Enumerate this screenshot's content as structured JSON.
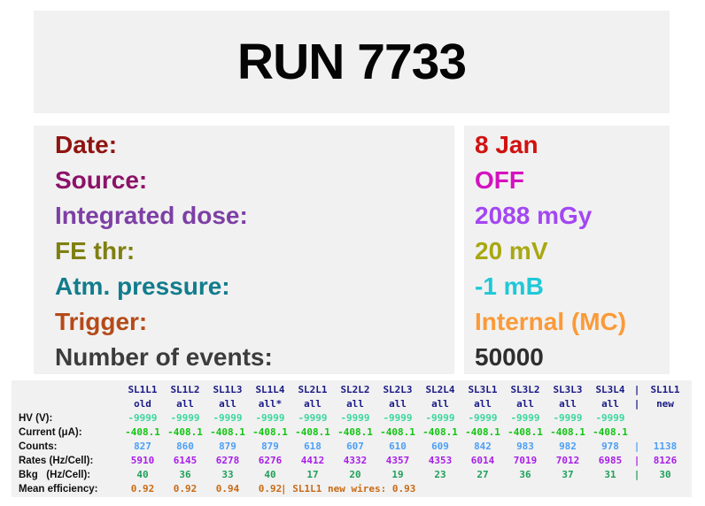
{
  "title": "RUN 7733",
  "info": {
    "rows": [
      {
        "key": "date",
        "label": "Date:",
        "value": "8 Jan",
        "label_color": "#8f1410",
        "value_color": "#d01211"
      },
      {
        "key": "source",
        "label": "Source:",
        "value": "OFF",
        "label_color": "#8c1268",
        "value_color": "#d412c0"
      },
      {
        "key": "integrated-dose",
        "label": "Integrated dose:",
        "value": "2088 mGy",
        "label_color": "#7d3fa5",
        "value_color": "#a347f2"
      },
      {
        "key": "fe-thr",
        "label": "FE thr:",
        "value": "20 mV",
        "label_color": "#7f7f12",
        "value_color": "#a8a812"
      },
      {
        "key": "atm-pressure",
        "label": "Atm. pressure:",
        "value": "-1 mB",
        "label_color": "#127c8c",
        "value_color": "#1fc8d8"
      },
      {
        "key": "trigger",
        "label": "Trigger:",
        "value": "Internal (MC)",
        "label_color": "#b54a18",
        "value_color": "#fb9a38"
      },
      {
        "key": "number-of-events",
        "label": "Number of events:",
        "value": "50000",
        "label_color": "#3c3c3c",
        "value_color": "#2e2e2e"
      }
    ]
  },
  "table": {
    "pipe": "|",
    "header_color": "#1a1a87",
    "columns": [
      "SL1L1",
      "SL1L2",
      "SL1L3",
      "SL1L4",
      "SL2L1",
      "SL2L2",
      "SL2L3",
      "SL2L4",
      "SL3L1",
      "SL3L2",
      "SL3L3",
      "SL3L4"
    ],
    "extra_header": "SL1L1",
    "subcolumns": [
      "old",
      "all",
      "all",
      "all*",
      "all",
      "all",
      "all",
      "all",
      "all",
      "all",
      "all",
      "all"
    ],
    "extra_subheader": "new",
    "rows": [
      {
        "label": "HV (V):",
        "color": "#3bd79e",
        "values": [
          "-9999",
          "-9999",
          "-9999",
          "-9999",
          "-9999",
          "-9999",
          "-9999",
          "-9999",
          "-9999",
          "-9999",
          "-9999",
          "-9999"
        ],
        "extra": ""
      },
      {
        "label": "Current (μA):",
        "color": "#12c412",
        "values": [
          "-408.1",
          "-408.1",
          "-408.1",
          "-408.1",
          "-408.1",
          "-408.1",
          "-408.1",
          "-408.1",
          "-408.1",
          "-408.1",
          "-408.1",
          "-408.1"
        ],
        "extra": ""
      },
      {
        "label": "Counts:",
        "color": "#4d9ff5",
        "values": [
          "827",
          "860",
          "879",
          "879",
          "618",
          "607",
          "610",
          "609",
          "842",
          "983",
          "982",
          "978"
        ],
        "extra": "1138"
      },
      {
        "label": "Rates (Hz/Cell):",
        "color": "#a81ee8",
        "values": [
          "5910",
          "6145",
          "6278",
          "6276",
          "4412",
          "4332",
          "4357",
          "4353",
          "6014",
          "7019",
          "7012",
          "6985"
        ],
        "extra": "8126"
      },
      {
        "label": "Bkg   (Hz/Cell):",
        "color": "#1fa05a",
        "values": [
          "40",
          "36",
          "33",
          "40",
          "17",
          "20",
          "19",
          "23",
          "27",
          "36",
          "37",
          "31"
        ],
        "extra": "30"
      }
    ],
    "efficiency": {
      "label": "Mean efficiency:",
      "color": "#c96a14",
      "values": [
        "0.92",
        "0.92",
        "0.94",
        "0.92"
      ],
      "note": "| SL1L1 new wires: 0.93"
    }
  }
}
